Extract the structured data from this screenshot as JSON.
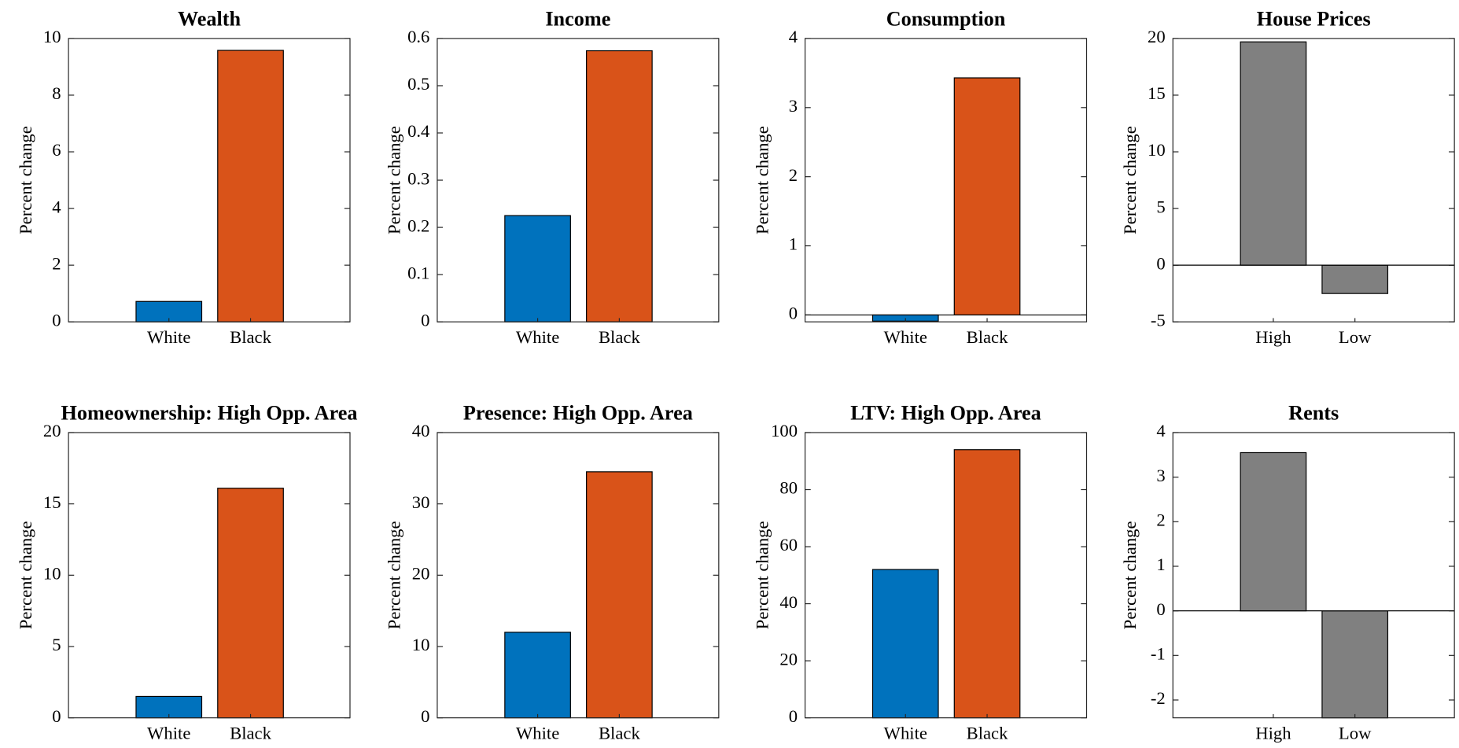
{
  "chart_data": [
    {
      "type": "bar",
      "title": "Wealth",
      "ylabel": "Percent change",
      "categories": [
        "White",
        "Black"
      ],
      "values": [
        0.72,
        9.58
      ],
      "colors": [
        "#0072bd",
        "#d95319"
      ],
      "ylim": [
        0,
        10
      ],
      "yticks": [
        0,
        2,
        4,
        6,
        8,
        10
      ]
    },
    {
      "type": "bar",
      "title": "Income",
      "ylabel": "Percent change",
      "categories": [
        "White",
        "Black"
      ],
      "values": [
        0.225,
        0.574
      ],
      "colors": [
        "#0072bd",
        "#d95319"
      ],
      "ylim": [
        0,
        0.6
      ],
      "yticks": [
        0,
        0.1,
        0.2,
        0.3,
        0.4,
        0.5,
        0.6
      ]
    },
    {
      "type": "bar",
      "title": "Consumption",
      "ylabel": "Percent change",
      "categories": [
        "White",
        "Black"
      ],
      "values": [
        -0.09,
        3.43
      ],
      "colors": [
        "#0072bd",
        "#d95319"
      ],
      "ylim": [
        -0.1,
        4
      ],
      "yticks": [
        0,
        1,
        2,
        3,
        4
      ]
    },
    {
      "type": "bar",
      "title": "House Prices",
      "ylabel": "Percent change",
      "categories": [
        "High",
        "Low"
      ],
      "values": [
        19.7,
        -2.5
      ],
      "colors": [
        "#808080",
        "#808080"
      ],
      "ylim": [
        -5,
        20
      ],
      "yticks": [
        -5,
        0,
        5,
        10,
        15,
        20
      ]
    },
    {
      "type": "bar",
      "title": "Homeownership: High Opp. Area",
      "ylabel": "Percent change",
      "categories": [
        "White",
        "Black"
      ],
      "values": [
        1.5,
        16.1
      ],
      "colors": [
        "#0072bd",
        "#d95319"
      ],
      "ylim": [
        0,
        20
      ],
      "yticks": [
        0,
        5,
        10,
        15,
        20
      ]
    },
    {
      "type": "bar",
      "title": "Presence: High Opp. Area",
      "ylabel": "Percent change",
      "categories": [
        "White",
        "Black"
      ],
      "values": [
        12,
        34.5
      ],
      "colors": [
        "#0072bd",
        "#d95319"
      ],
      "ylim": [
        0,
        40
      ],
      "yticks": [
        0,
        10,
        20,
        30,
        40
      ]
    },
    {
      "type": "bar",
      "title": "LTV: High Opp. Area",
      "ylabel": "Percent change",
      "categories": [
        "White",
        "Black"
      ],
      "values": [
        52,
        94
      ],
      "colors": [
        "#0072bd",
        "#d95319"
      ],
      "ylim": [
        0,
        100
      ],
      "yticks": [
        0,
        20,
        40,
        60,
        80,
        100
      ]
    },
    {
      "type": "bar",
      "title": "Rents",
      "ylabel": "Percent change",
      "categories": [
        "High",
        "Low"
      ],
      "values": [
        3.55,
        -2.4
      ],
      "colors": [
        "#808080",
        "#808080"
      ],
      "ylim": [
        -2.4,
        4
      ],
      "yticks": [
        -2,
        -1,
        0,
        1,
        2,
        3,
        4
      ]
    }
  ]
}
